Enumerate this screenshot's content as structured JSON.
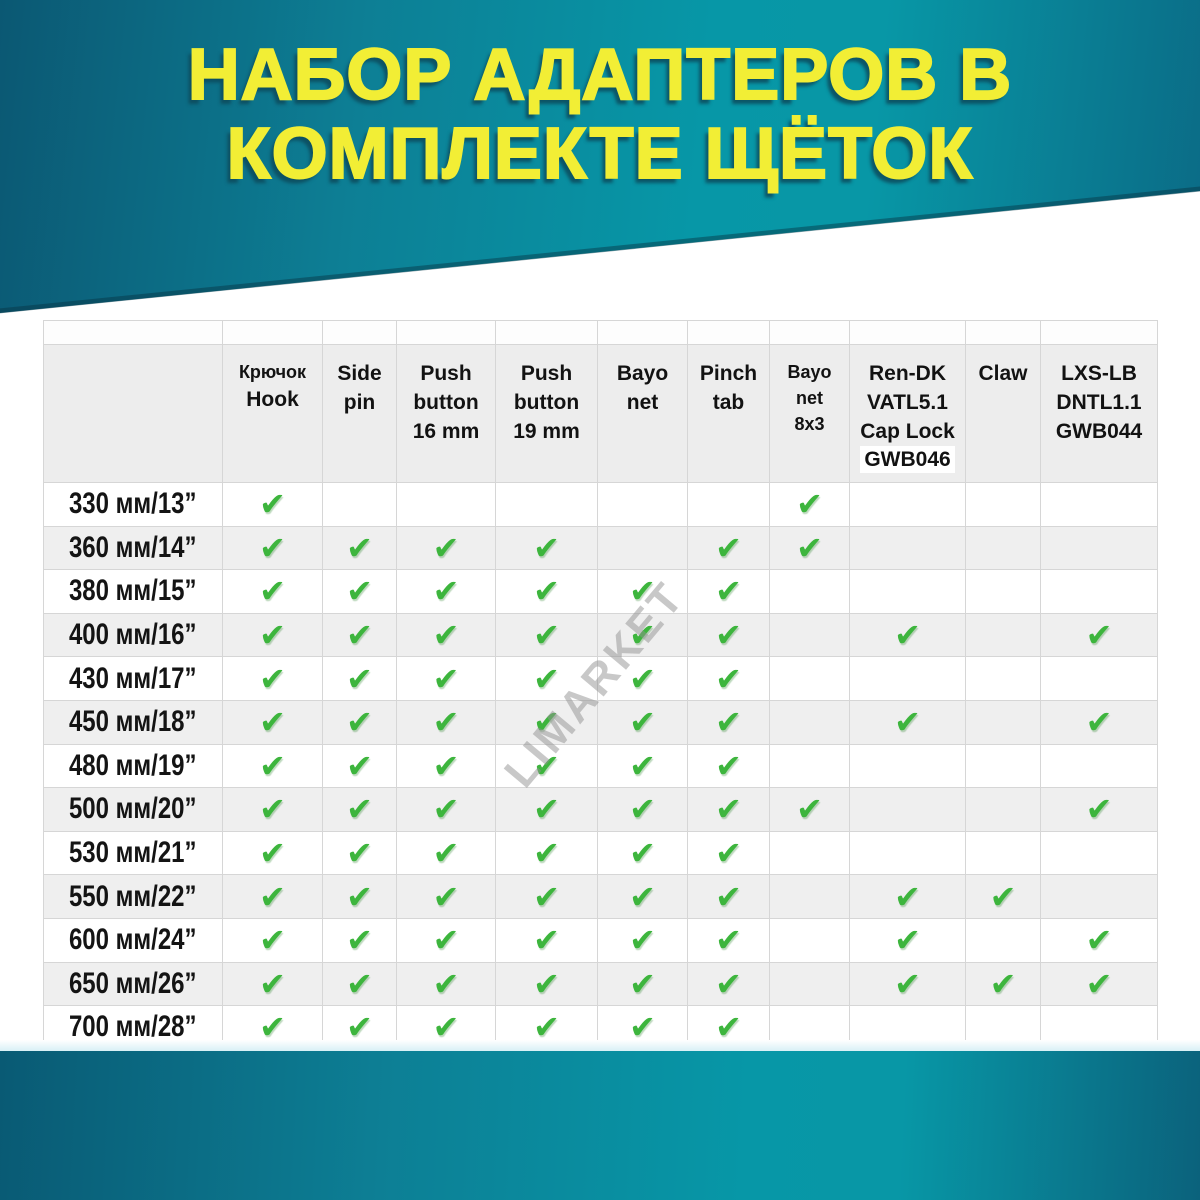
{
  "title": {
    "line1": "НАБОР АДАПТЕРОВ В",
    "line2": "КОМПЛЕКТЕ ЩЁТОК"
  },
  "watermark": "LIMARKET",
  "chart_data": {
    "type": "table",
    "title": "НАБОР АДАПТЕРОВ В КОМПЛЕКТЕ ЩЁТОК",
    "check_glyph": "✔",
    "columns": [
      {
        "id": "hook",
        "lines": [
          "Крючок",
          "Hook"
        ]
      },
      {
        "id": "side-pin",
        "lines": [
          "Side",
          "pin"
        ]
      },
      {
        "id": "push-button-16",
        "lines": [
          "Push",
          "button",
          "16 mm"
        ]
      },
      {
        "id": "push-button-19",
        "lines": [
          "Push",
          "button",
          "19 mm"
        ]
      },
      {
        "id": "bayonet",
        "lines": [
          "Bayo",
          "net"
        ]
      },
      {
        "id": "pinch-tab",
        "lines": [
          "Pinch",
          "tab"
        ]
      },
      {
        "id": "bayonet-8x3",
        "lines": [
          "Bayo",
          "net",
          "8x3"
        ]
      },
      {
        "id": "ren-dk",
        "lines": [
          "Ren-DK",
          "VATL5.1",
          "Cap Lock",
          "GWB046"
        ],
        "highlight_index": 3
      },
      {
        "id": "claw",
        "lines": [
          "Claw"
        ]
      },
      {
        "id": "lxs-lb",
        "lines": [
          "LXS-LB",
          "DNTL1.1",
          "GWB044"
        ]
      }
    ],
    "rows": [
      {
        "size": "330 мм/13”",
        "checks": [
          1,
          0,
          0,
          0,
          0,
          0,
          1,
          0,
          0,
          0
        ]
      },
      {
        "size": "360 мм/14”",
        "checks": [
          1,
          1,
          1,
          1,
          0,
          1,
          1,
          0,
          0,
          0
        ]
      },
      {
        "size": "380 мм/15”",
        "checks": [
          1,
          1,
          1,
          1,
          1,
          1,
          0,
          0,
          0,
          0
        ]
      },
      {
        "size": "400 мм/16”",
        "checks": [
          1,
          1,
          1,
          1,
          1,
          1,
          0,
          1,
          0,
          1
        ]
      },
      {
        "size": "430 мм/17”",
        "checks": [
          1,
          1,
          1,
          1,
          1,
          1,
          0,
          0,
          0,
          0
        ]
      },
      {
        "size": "450 мм/18”",
        "checks": [
          1,
          1,
          1,
          1,
          1,
          1,
          0,
          1,
          0,
          1
        ]
      },
      {
        "size": "480 мм/19”",
        "checks": [
          1,
          1,
          1,
          1,
          1,
          1,
          0,
          0,
          0,
          0
        ]
      },
      {
        "size": "500 мм/20”",
        "checks": [
          1,
          1,
          1,
          1,
          1,
          1,
          1,
          0,
          0,
          1
        ]
      },
      {
        "size": "530 мм/21”",
        "checks": [
          1,
          1,
          1,
          1,
          1,
          1,
          0,
          0,
          0,
          0
        ]
      },
      {
        "size": "550 мм/22”",
        "checks": [
          1,
          1,
          1,
          1,
          1,
          1,
          0,
          1,
          1,
          0
        ]
      },
      {
        "size": "600 мм/24”",
        "checks": [
          1,
          1,
          1,
          1,
          1,
          1,
          0,
          1,
          0,
          1
        ]
      },
      {
        "size": "650 мм/26”",
        "checks": [
          1,
          1,
          1,
          1,
          1,
          1,
          0,
          1,
          1,
          1
        ]
      },
      {
        "size": "700 мм/28”",
        "checks": [
          1,
          1,
          1,
          1,
          1,
          1,
          0,
          0,
          0,
          0
        ]
      }
    ]
  },
  "colors": {
    "teal_dark": "#0b5873",
    "teal_light": "#0797a7",
    "title_yellow": "#f2ee35",
    "title_shadow": "#0d4a5c",
    "check_green": "#3db53d",
    "row_alt_gray": "#efefef",
    "header_gray": "#ededed",
    "border_gray": "#d6d6d6"
  }
}
